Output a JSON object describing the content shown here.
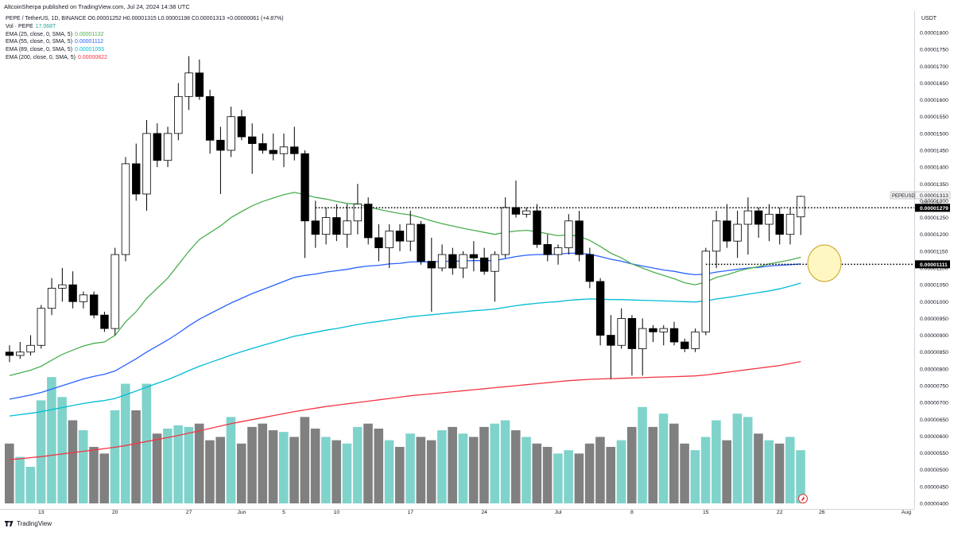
{
  "header": {
    "publisher": "AltcoinSherpa published on TradingView.com, Jul 24, 2024 14:38 UTC",
    "symbol_line": "PEPE / TetherUS, 1D, BINANCE  O0.00001252  H0.00001315  L0.00001198  C0.00001313  +0.00000061 (+4.87%)"
  },
  "legend": {
    "vol": {
      "label": "Vol · PEPE",
      "value": "17.068T",
      "color": "#26a69a"
    },
    "ema": [
      {
        "label": "EMA (25, close, 0, SMA, 5)",
        "value": "0.00001132",
        "color": "#4caf50"
      },
      {
        "label": "EMA (55, close, 0, SMA, 5)",
        "value": "0.00001112",
        "color": "#2962ff"
      },
      {
        "label": "EMA (89, close, 0, SMA, 5)",
        "value": "0.00001055",
        "color": "#00bcd4"
      },
      {
        "label": "EMA (200, close, 0, SMA, 5)",
        "value": "0.00000822",
        "color": "#f23645"
      }
    ]
  },
  "price_axis": {
    "currency": "USDT",
    "ticks": [
      "0.00001800",
      "0.00001750",
      "0.00001700",
      "0.00001650",
      "0.00001600",
      "0.00001550",
      "0.00001500",
      "0.00001450",
      "0.00001400",
      "0.00001350",
      "0.00001300",
      "0.00001250",
      "0.00001200",
      "0.00001150",
      "0.00001100",
      "0.00001050",
      "0.00001000",
      "0.00000950",
      "0.00000900",
      "0.00000850",
      "0.00000800",
      "0.00000750",
      "0.00000700",
      "0.00000650",
      "0.00000600",
      "0.00000550",
      "0.00000500",
      "0.00000450",
      "0.00000400"
    ],
    "labels": {
      "symbol_tag": "PEPEUSDT",
      "last_price": "0.00001313",
      "countdown": "09:21:51",
      "level_upper": "0.00001279",
      "level_lower": "0.00001111"
    }
  },
  "time_axis": {
    "labels": [
      "13",
      "20",
      "27",
      "Jun",
      "5",
      "10",
      "17",
      "24",
      "Jul",
      "8",
      "15",
      "22",
      "26",
      "Aug"
    ]
  },
  "footer": {
    "brand": "TradingView"
  },
  "colors": {
    "bull_candle": "#ffffff",
    "bear_candle": "#000000",
    "vol_up": "#7fd3cb",
    "vol_down": "#808080",
    "ema25": "#4caf50",
    "ema55": "#2962ff",
    "ema89": "#00bcd4",
    "ema200": "#f23645",
    "highlight_ellipse": "#fff7c2"
  },
  "chart_data": {
    "type": "candlestick",
    "title": "",
    "interval": "1D",
    "y_range": [
      4e-06,
      1.8e-05
    ],
    "horizontal_levels": [
      1.279e-05,
      1.111e-05
    ],
    "x": [
      "May 10",
      "May 11",
      "May 12",
      "May 13",
      "May 14",
      "May 15",
      "May 16",
      "May 17",
      "May 18",
      "May 19",
      "May 20",
      "May 21",
      "May 22",
      "May 23",
      "May 24",
      "May 25",
      "May 26",
      "May 27",
      "May 28",
      "May 29",
      "May 30",
      "May 31",
      "Jun 1",
      "Jun 2",
      "Jun 3",
      "Jun 4",
      "Jun 5",
      "Jun 6",
      "Jun 7",
      "Jun 8",
      "Jun 9",
      "Jun 10",
      "Jun 11",
      "Jun 12",
      "Jun 13",
      "Jun 14",
      "Jun 15",
      "Jun 16",
      "Jun 17",
      "Jun 18",
      "Jun 19",
      "Jun 20",
      "Jun 21",
      "Jun 22",
      "Jun 23",
      "Jun 24",
      "Jun 25",
      "Jun 26",
      "Jun 27",
      "Jun 28",
      "Jun 29",
      "Jun 30",
      "Jul 1",
      "Jul 2",
      "Jul 3",
      "Jul 4",
      "Jul 5",
      "Jul 6",
      "Jul 7",
      "Jul 8",
      "Jul 9",
      "Jul 10",
      "Jul 11",
      "Jul 12",
      "Jul 13",
      "Jul 14",
      "Jul 15",
      "Jul 16",
      "Jul 17",
      "Jul 18",
      "Jul 19",
      "Jul 20",
      "Jul 21",
      "Jul 22",
      "Jul 23",
      "Jul 24"
    ],
    "ohlc": [
      [
        8.5e-06,
        8.7e-06,
        8.2e-06,
        8.4e-06
      ],
      [
        8.4e-06,
        8.8e-06,
        8.3e-06,
        8.5e-06
      ],
      [
        8.5e-06,
        9e-06,
        8.4e-06,
        8.7e-06
      ],
      [
        8.7e-06,
        9.9e-06,
        8.6e-06,
        9.8e-06
      ],
      [
        9.8e-06,
        1.07e-05,
        9.6e-06,
        1.04e-05
      ],
      [
        1.04e-05,
        1.1e-05,
        1e-05,
        1.05e-05
      ],
      [
        1.05e-05,
        1.09e-05,
        9.8e-06,
        1e-05
      ],
      [
        1e-05,
        1.03e-05,
        9.8e-06,
        1.02e-05
      ],
      [
        1.02e-05,
        1.03e-05,
        9.5e-06,
        9.6e-06
      ],
      [
        9.6e-06,
        9.7e-06,
        9.1e-06,
        9.2e-06
      ],
      [
        9.2e-06,
        1.16e-05,
        9e-06,
        1.14e-05
      ],
      [
        1.14e-05,
        1.43e-05,
        1.12e-05,
        1.41e-05
      ],
      [
        1.41e-05,
        1.47e-05,
        1.3e-05,
        1.32e-05
      ],
      [
        1.32e-05,
        1.54e-05,
        1.27e-05,
        1.5e-05
      ],
      [
        1.5e-05,
        1.53e-05,
        1.4e-05,
        1.42e-05
      ],
      [
        1.42e-05,
        1.52e-05,
        1.4e-05,
        1.5e-05
      ],
      [
        1.5e-05,
        1.65e-05,
        1.48e-05,
        1.61e-05
      ],
      [
        1.61e-05,
        1.73e-05,
        1.57e-05,
        1.68e-05
      ],
      [
        1.68e-05,
        1.72e-05,
        1.6e-05,
        1.61e-05
      ],
      [
        1.61e-05,
        1.63e-05,
        1.44e-05,
        1.48e-05
      ],
      [
        1.48e-05,
        1.52e-05,
        1.32e-05,
        1.45e-05
      ],
      [
        1.45e-05,
        1.58e-05,
        1.43e-05,
        1.55e-05
      ],
      [
        1.55e-05,
        1.57e-05,
        1.48e-05,
        1.49e-05
      ],
      [
        1.49e-05,
        1.53e-05,
        1.38e-05,
        1.47e-05
      ],
      [
        1.47e-05,
        1.5e-05,
        1.44e-05,
        1.45e-05
      ],
      [
        1.45e-05,
        1.5e-05,
        1.42e-05,
        1.44e-05
      ],
      [
        1.44e-05,
        1.5e-05,
        1.4e-05,
        1.46e-05
      ],
      [
        1.46e-05,
        1.52e-05,
        1.42e-05,
        1.44e-05
      ],
      [
        1.44e-05,
        1.45e-05,
        1.13e-05,
        1.24e-05
      ],
      [
        1.24e-05,
        1.3e-05,
        1.16e-05,
        1.2e-05
      ],
      [
        1.2e-05,
        1.28e-05,
        1.17e-05,
        1.25e-05
      ],
      [
        1.25e-05,
        1.29e-05,
        1.18e-05,
        1.2e-05
      ],
      [
        1.2e-05,
        1.29e-05,
        1.16e-05,
        1.24e-05
      ],
      [
        1.24e-05,
        1.35e-05,
        1.2e-05,
        1.29e-05
      ],
      [
        1.29e-05,
        1.31e-05,
        1.17e-05,
        1.19e-05
      ],
      [
        1.19e-05,
        1.23e-05,
        1.12e-05,
        1.16e-05
      ],
      [
        1.16e-05,
        1.23e-05,
        1.1e-05,
        1.21e-05
      ],
      [
        1.21e-05,
        1.23e-05,
        1.15e-05,
        1.18e-05
      ],
      [
        1.18e-05,
        1.27e-05,
        1.15e-05,
        1.23e-05
      ],
      [
        1.23e-05,
        1.24e-05,
        1.11e-05,
        1.12e-05
      ],
      [
        1.12e-05,
        1.19e-05,
        9.7e-06,
        1.1e-05
      ],
      [
        1.1e-05,
        1.17e-05,
        1.09e-05,
        1.14e-05
      ],
      [
        1.14e-05,
        1.16e-05,
        1.08e-05,
        1.1e-05
      ],
      [
        1.1e-05,
        1.15e-05,
        1.07e-05,
        1.14e-05
      ],
      [
        1.14e-05,
        1.18e-05,
        1.09e-05,
        1.13e-05
      ],
      [
        1.13e-05,
        1.16e-05,
        1.08e-05,
        1.09e-05
      ],
      [
        1.09e-05,
        1.15e-05,
        1e-05,
        1.14e-05
      ],
      [
        1.14e-05,
        1.31e-05,
        1.13e-05,
        1.28e-05
      ],
      [
        1.28e-05,
        1.36e-05,
        1.25e-05,
        1.26e-05
      ],
      [
        1.26e-05,
        1.28e-05,
        1.25e-05,
        1.27e-05
      ],
      [
        1.27e-05,
        1.29e-05,
        1.16e-05,
        1.17e-05
      ],
      [
        1.17e-05,
        1.2e-05,
        1.12e-05,
        1.14e-05
      ],
      [
        1.14e-05,
        1.17e-05,
        1.11e-05,
        1.16e-05
      ],
      [
        1.16e-05,
        1.26e-05,
        1.14e-05,
        1.24e-05
      ],
      [
        1.24e-05,
        1.27e-05,
        1.12e-05,
        1.14e-05
      ],
      [
        1.14e-05,
        1.16e-05,
        1.04e-05,
        1.06e-05
      ],
      [
        1.06e-05,
        1.07e-05,
        8.7e-06,
        9e-06
      ],
      [
        9e-06,
        9.6e-06,
        7.7e-06,
        8.7e-06
      ],
      [
        8.7e-06,
        9.8e-06,
        8.6e-06,
        9.5e-06
      ],
      [
        9.5e-06,
        9.6e-06,
        7.8e-06,
        8.6e-06
      ],
      [
        8.6e-06,
        9.5e-06,
        7.8e-06,
        9.2e-06
      ],
      [
        9.2e-06,
        9.3e-06,
        8.8e-06,
        9.1e-06
      ],
      [
        9.1e-06,
        9.3e-06,
        8.7e-06,
        9.2e-06
      ],
      [
        9.2e-06,
        9.4e-06,
        8.7e-06,
        8.8e-06
      ],
      [
        8.8e-06,
        8.9e-06,
        8.5e-06,
        8.6e-06
      ],
      [
        8.6e-06,
        9.2e-06,
        8.5e-06,
        9.1e-06
      ],
      [
        9.1e-06,
        1.16e-05,
        9e-06,
        1.15e-05
      ],
      [
        1.15e-05,
        1.27e-05,
        1.1e-05,
        1.24e-05
      ],
      [
        1.24e-05,
        1.29e-05,
        1.16e-05,
        1.18e-05
      ],
      [
        1.18e-05,
        1.27e-05,
        1.13e-05,
        1.23e-05
      ],
      [
        1.23e-05,
        1.31e-05,
        1.14e-05,
        1.27e-05
      ],
      [
        1.27e-05,
        1.28e-05,
        1.19e-05,
        1.23e-05
      ],
      [
        1.23e-05,
        1.29e-05,
        1.18e-05,
        1.26e-05
      ],
      [
        1.26e-05,
        1.28e-05,
        1.17e-05,
        1.2e-05
      ],
      [
        1.2e-05,
        1.28e-05,
        1.17e-05,
        1.26e-05
      ],
      [
        1.252e-05,
        1.315e-05,
        1.198e-05,
        1.313e-05
      ]
    ],
    "volume": [
      36,
      28,
      22,
      62,
      76,
      64,
      50,
      44,
      34,
      30,
      56,
      72,
      56,
      72,
      42,
      45,
      47,
      46,
      48,
      38,
      40,
      52,
      36,
      46,
      48,
      44,
      43,
      40,
      52,
      45,
      40,
      38,
      36,
      46,
      48,
      45,
      38,
      34,
      42,
      40,
      38,
      44,
      46,
      42,
      40,
      46,
      48,
      50,
      44,
      40,
      36,
      34,
      30,
      32,
      30,
      36,
      40,
      34,
      38,
      46,
      58,
      46,
      54,
      48,
      36,
      32,
      40,
      50,
      38,
      54,
      52,
      42,
      38,
      36,
      40,
      32
    ],
    "ema25": [
      7.8e-06,
      7.88e-06,
      7.96e-06,
      8.08e-06,
      8.26e-06,
      8.43e-06,
      8.56e-06,
      8.68e-06,
      8.76e-06,
      8.8e-06,
      9e-06,
      9.4e-06,
      9.7e-06,
      1.01e-05,
      1.04e-05,
      1.07e-05,
      1.11e-05,
      1.15e-05,
      1.185e-05,
      1.205e-05,
      1.225e-05,
      1.25e-05,
      1.268e-05,
      1.285e-05,
      1.298e-05,
      1.308e-05,
      1.318e-05,
      1.325e-05,
      1.318e-05,
      1.31e-05,
      1.305e-05,
      1.298e-05,
      1.292e-05,
      1.29e-05,
      1.282e-05,
      1.274e-05,
      1.268e-05,
      1.262e-05,
      1.258e-05,
      1.25e-05,
      1.24e-05,
      1.232e-05,
      1.225e-05,
      1.218e-05,
      1.212e-05,
      1.206e-05,
      1.2e-05,
      1.206e-05,
      1.21e-05,
      1.212e-05,
      1.208e-05,
      1.202e-05,
      1.196e-05,
      1.199e-05,
      1.194e-05,
      1.182e-05,
      1.164e-05,
      1.144e-05,
      1.13e-05,
      1.112e-05,
      1.1e-05,
      1.088e-05,
      1.078e-05,
      1.068e-05,
      1.056e-05,
      1.05e-05,
      1.058e-05,
      1.072e-05,
      1.08e-05,
      1.09e-05,
      1.098e-05,
      1.104e-05,
      1.112e-05,
      1.118e-05,
      1.124e-05,
      1.132e-05
    ],
    "ema55": [
      7.1e-06,
      7.16e-06,
      7.22e-06,
      7.3e-06,
      7.4e-06,
      7.5e-06,
      7.6e-06,
      7.7e-06,
      7.78e-06,
      7.84e-06,
      7.94e-06,
      8.12e-06,
      8.3e-06,
      8.5e-06,
      8.68e-06,
      8.86e-06,
      9.06e-06,
      9.28e-06,
      9.48e-06,
      9.64e-06,
      9.8e-06,
      9.96e-06,
      1.01e-05,
      1.024e-05,
      1.036e-05,
      1.048e-05,
      1.06e-05,
      1.072e-05,
      1.078e-05,
      1.082e-05,
      1.088e-05,
      1.092e-05,
      1.096e-05,
      1.102e-05,
      1.106e-05,
      1.108e-05,
      1.112e-05,
      1.114e-05,
      1.118e-05,
      1.118e-05,
      1.118e-05,
      1.12e-05,
      1.12e-05,
      1.121e-05,
      1.122e-05,
      1.122e-05,
      1.122e-05,
      1.128e-05,
      1.134e-05,
      1.138e-05,
      1.14e-05,
      1.14e-05,
      1.141e-05,
      1.144e-05,
      1.144e-05,
      1.141e-05,
      1.134e-05,
      1.126e-05,
      1.12e-05,
      1.112e-05,
      1.106e-05,
      1.1e-05,
      1.094e-05,
      1.09e-05,
      1.084e-05,
      1.08e-05,
      1.082e-05,
      1.088e-05,
      1.092e-05,
      1.096e-05,
      1.1e-05,
      1.102e-05,
      1.106e-05,
      1.108e-05,
      1.11e-05,
      1.112e-05
    ],
    "ema89": [
      6.6e-06,
      6.64e-06,
      6.68e-06,
      6.73e-06,
      6.79e-06,
      6.85e-06,
      6.91e-06,
      6.97e-06,
      7.02e-06,
      7.06e-06,
      7.12e-06,
      7.23e-06,
      7.34e-06,
      7.46e-06,
      7.57e-06,
      7.68e-06,
      7.81e-06,
      7.95e-06,
      8.08e-06,
      8.19e-06,
      8.3e-06,
      8.41e-06,
      8.51e-06,
      8.61e-06,
      8.7e-06,
      8.79e-06,
      8.88e-06,
      8.97e-06,
      9.03e-06,
      9.09e-06,
      9.15e-06,
      9.2e-06,
      9.26e-06,
      9.32e-06,
      9.37e-06,
      9.41e-06,
      9.46e-06,
      9.5e-06,
      9.55e-06,
      9.58e-06,
      9.61e-06,
      9.64e-06,
      9.67e-06,
      9.7e-06,
      9.73e-06,
      9.75e-06,
      9.78e-06,
      9.83e-06,
      9.88e-06,
      9.92e-06,
      9.95e-06,
      9.98e-06,
      1e-05,
      1.004e-05,
      1.006e-05,
      1.008e-05,
      1.007e-05,
      1.006e-05,
      1.006e-05,
      1.005e-05,
      1.004e-05,
      1.003e-05,
      1.002e-05,
      1.001e-05,
      1e-05,
      9.99e-06,
      1.002e-05,
      1.008e-05,
      1.012e-05,
      1.017e-05,
      1.022e-05,
      1.027e-05,
      1.032e-05,
      1.038e-05,
      1.046e-05,
      1.055e-05
    ],
    "ema200": [
      5.3e-06,
      5.33e-06,
      5.36e-06,
      5.39e-06,
      5.43e-06,
      5.47e-06,
      5.51e-06,
      5.55e-06,
      5.59e-06,
      5.63e-06,
      5.67e-06,
      5.72e-06,
      5.78e-06,
      5.84e-06,
      5.9e-06,
      5.96e-06,
      6.02e-06,
      6.09e-06,
      6.16e-06,
      6.23e-06,
      6.3e-06,
      6.37e-06,
      6.43e-06,
      6.49e-06,
      6.55e-06,
      6.61e-06,
      6.67e-06,
      6.73e-06,
      6.78e-06,
      6.83e-06,
      6.88e-06,
      6.92e-06,
      6.96e-06,
      7e-06,
      7.04e-06,
      7.08e-06,
      7.12e-06,
      7.16e-06,
      7.2e-06,
      7.23e-06,
      7.26e-06,
      7.29e-06,
      7.32e-06,
      7.35e-06,
      7.38e-06,
      7.41e-06,
      7.44e-06,
      7.47e-06,
      7.5e-06,
      7.53e-06,
      7.56e-06,
      7.59e-06,
      7.62e-06,
      7.65e-06,
      7.67e-06,
      7.69e-06,
      7.7e-06,
      7.71e-06,
      7.72e-06,
      7.73e-06,
      7.74e-06,
      7.75e-06,
      7.76e-06,
      7.77e-06,
      7.78e-06,
      7.79e-06,
      7.82e-06,
      7.86e-06,
      7.9e-06,
      7.94e-06,
      7.98e-06,
      8.02e-06,
      8.06e-06,
      8.1e-06,
      8.16e-06,
      8.22e-06
    ]
  }
}
